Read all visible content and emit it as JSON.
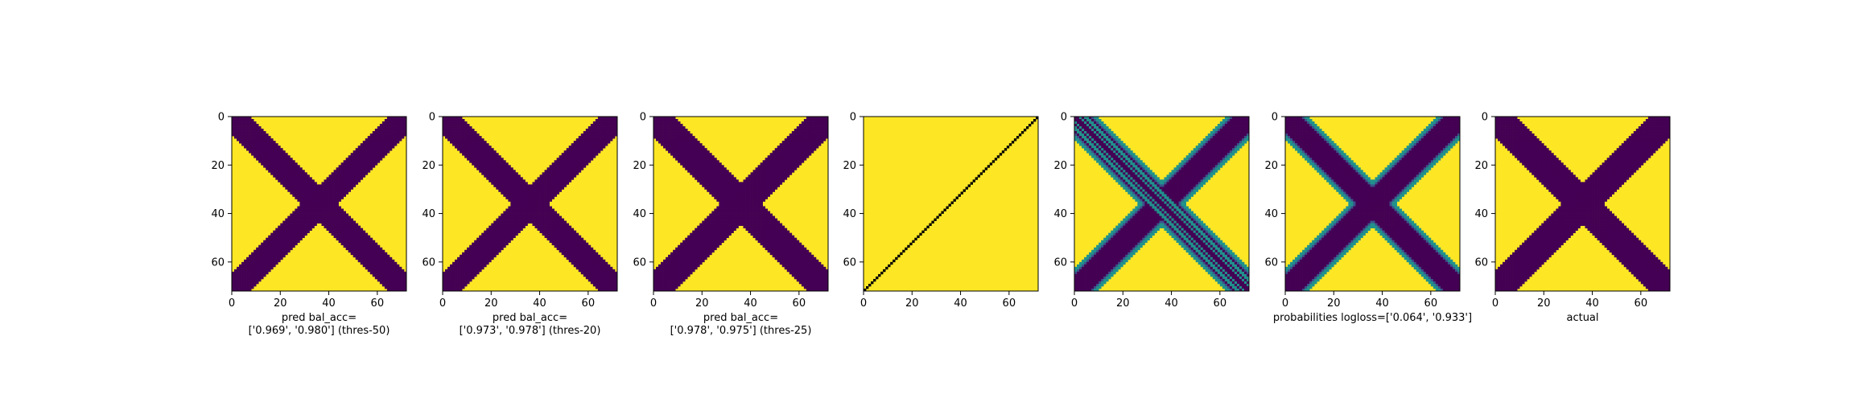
{
  "colors": {
    "dark": "#440154",
    "light": "#fde725",
    "mid": "#21918c",
    "mid2": "#3b528b",
    "green": "#5ec962"
  },
  "chart_data": [
    {
      "type": "heatmap",
      "panel": 0,
      "style": "binary",
      "band_halfwidth": 5.0,
      "xlim": [
        0,
        72
      ],
      "ylim": [
        0,
        72
      ],
      "xticks": [
        0,
        20,
        40,
        60
      ],
      "yticks": [
        0,
        20,
        40,
        60
      ],
      "xlabel_lines": [
        "pred bal_acc=",
        "['0.969', '0.980'] (thres-50)"
      ]
    },
    {
      "type": "heatmap",
      "panel": 1,
      "style": "binary",
      "band_halfwidth": 5.5,
      "xlim": [
        0,
        72
      ],
      "ylim": [
        0,
        72
      ],
      "xticks": [
        0,
        20,
        40,
        60
      ],
      "yticks": [
        0,
        20,
        40,
        60
      ],
      "xlabel_lines": [
        "pred bal_acc=",
        "['0.973', '0.978'] (thres-20)"
      ]
    },
    {
      "type": "heatmap",
      "panel": 2,
      "style": "binary",
      "band_halfwidth": 6.0,
      "xlim": [
        0,
        72
      ],
      "ylim": [
        0,
        72
      ],
      "xticks": [
        0,
        20,
        40,
        60
      ],
      "yticks": [
        0,
        20,
        40,
        60
      ],
      "xlabel_lines": [
        "pred bal_acc=",
        "['0.978', '0.975'] (thres-25)"
      ]
    },
    {
      "type": "heatmap",
      "panel": 3,
      "style": "antidiagonal",
      "xlim": [
        0,
        72
      ],
      "ylim": [
        0,
        72
      ],
      "xticks": [
        0,
        20,
        40,
        60
      ],
      "yticks": [
        0,
        20,
        40,
        60
      ],
      "xlabel_lines": []
    },
    {
      "type": "heatmap",
      "panel": 4,
      "style": "prob_edges",
      "band_halfwidth": 6.0,
      "xlim": [
        0,
        72
      ],
      "ylim": [
        0,
        72
      ],
      "xticks": [
        0,
        20,
        40,
        60
      ],
      "yticks": [
        0,
        20,
        40,
        60
      ],
      "xlabel_lines": []
    },
    {
      "type": "heatmap",
      "panel": 5,
      "style": "prob",
      "band_halfwidth": 6.0,
      "xlim": [
        0,
        72
      ],
      "ylim": [
        0,
        72
      ],
      "xticks": [
        0,
        20,
        40,
        60
      ],
      "yticks": [
        0,
        20,
        40,
        60
      ],
      "xlabel_lines": [
        "probabilities logloss=['0.064', '0.933']"
      ]
    },
    {
      "type": "heatmap",
      "panel": 6,
      "style": "binary",
      "band_halfwidth": 6.0,
      "xlim": [
        0,
        72
      ],
      "ylim": [
        0,
        72
      ],
      "xticks": [
        0,
        20,
        40,
        60
      ],
      "yticks": [
        0,
        20,
        40,
        60
      ],
      "xlabel_lines": [
        "actual"
      ]
    }
  ]
}
